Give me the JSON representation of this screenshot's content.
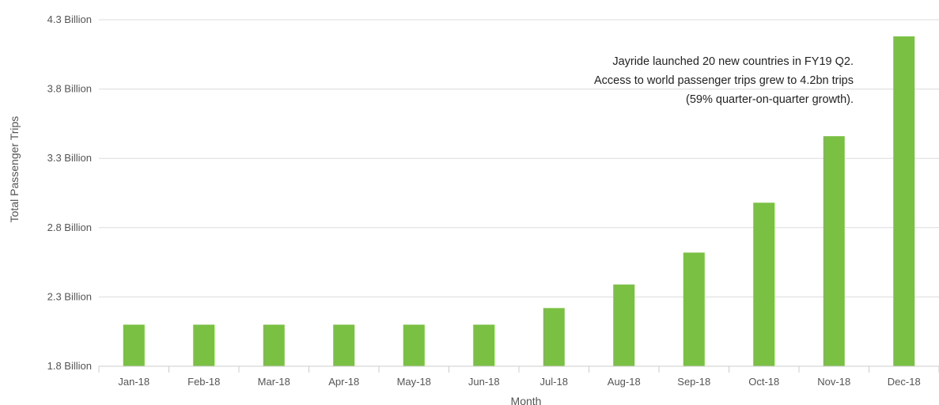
{
  "chart_data": {
    "type": "bar",
    "title": "",
    "xlabel": "Month",
    "ylabel": "Total Passenger Trips",
    "categories": [
      "Jan-18",
      "Feb-18",
      "Mar-18",
      "Apr-18",
      "May-18",
      "Jun-18",
      "Jul-18",
      "Aug-18",
      "Sep-18",
      "Oct-18",
      "Nov-18",
      "Dec-18"
    ],
    "values": [
      2.1,
      2.1,
      2.1,
      2.1,
      2.1,
      2.1,
      2.22,
      2.39,
      2.62,
      2.98,
      3.46,
      4.18
    ],
    "value_unit": "Billion",
    "ylim": [
      1.8,
      4.3
    ],
    "y_ticks": [
      1.8,
      2.3,
      2.8,
      3.3,
      3.8,
      4.3
    ],
    "y_tick_labels": [
      "1.8 Billion",
      "2.3 Billion",
      "2.8 Billion",
      "3.3 Billion",
      "3.8 Billion",
      "4.3 Billion"
    ],
    "grid": true,
    "legend": "none",
    "bar_color": "#7ac143",
    "annotation": [
      "Jayride launched 20 new countries in FY19 Q2.",
      "Access to world passenger trips grew to 4.2bn trips",
      "(59% quarter-on-quarter growth)."
    ]
  }
}
